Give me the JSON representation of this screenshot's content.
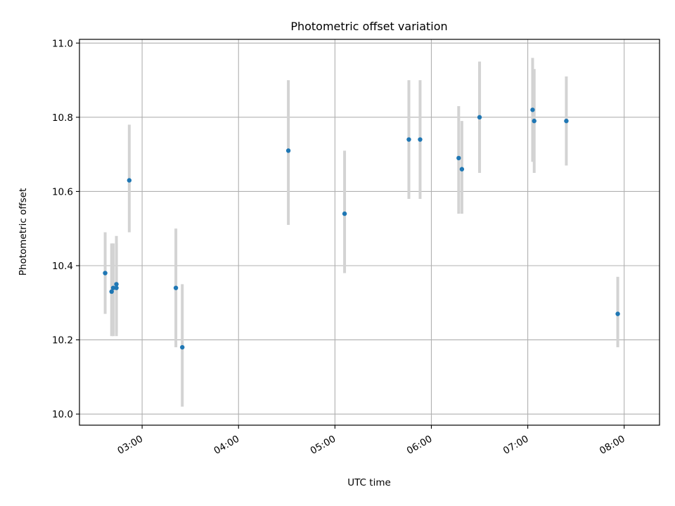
{
  "chart_data": {
    "type": "scatter",
    "title": "Photometric offset variation",
    "xlabel": "UTC time",
    "ylabel": "Photometric offset",
    "x_axis": {
      "kind": "time",
      "range": [
        "02:21",
        "08:22"
      ],
      "ticks": [
        "03:00",
        "04:00",
        "05:00",
        "06:00",
        "07:00",
        "08:00"
      ]
    },
    "y_axis": {
      "range": [
        9.97,
        11.01
      ],
      "ticks": [
        10.0,
        10.2,
        10.4,
        10.6,
        10.8,
        11.0
      ],
      "tick_labels": [
        "10.0",
        "10.2",
        "10.4",
        "10.6",
        "10.8",
        "11.0"
      ]
    },
    "grid": true,
    "marker_color": "#1f77b4",
    "errorbar_color": "#d3d3d3",
    "points": [
      {
        "x": "02:37",
        "y": 10.38,
        "ylow": 10.27,
        "yhigh": 10.49
      },
      {
        "x": "02:41",
        "y": 10.33,
        "ylow": 10.21,
        "yhigh": 10.46
      },
      {
        "x": "02:42",
        "y": 10.34,
        "ylow": 10.21,
        "yhigh": 10.46
      },
      {
        "x": "02:44",
        "y": 10.35,
        "ylow": 10.21,
        "yhigh": 10.48
      },
      {
        "x": "02:44",
        "y": 10.34,
        "ylow": 10.22,
        "yhigh": 10.46
      },
      {
        "x": "02:52",
        "y": 10.63,
        "ylow": 10.49,
        "yhigh": 10.78
      },
      {
        "x": "03:21",
        "y": 10.34,
        "ylow": 10.18,
        "yhigh": 10.5
      },
      {
        "x": "03:25",
        "y": 10.18,
        "ylow": 10.02,
        "yhigh": 10.35
      },
      {
        "x": "04:31",
        "y": 10.71,
        "ylow": 10.51,
        "yhigh": 10.9
      },
      {
        "x": "05:06",
        "y": 10.54,
        "ylow": 10.38,
        "yhigh": 10.71
      },
      {
        "x": "05:46",
        "y": 10.74,
        "ylow": 10.58,
        "yhigh": 10.9
      },
      {
        "x": "05:53",
        "y": 10.74,
        "ylow": 10.58,
        "yhigh": 10.9
      },
      {
        "x": "06:17",
        "y": 10.69,
        "ylow": 10.54,
        "yhigh": 10.83
      },
      {
        "x": "06:19",
        "y": 10.66,
        "ylow": 10.54,
        "yhigh": 10.79
      },
      {
        "x": "06:30",
        "y": 10.8,
        "ylow": 10.65,
        "yhigh": 10.95
      },
      {
        "x": "07:03",
        "y": 10.82,
        "ylow": 10.68,
        "yhigh": 10.96
      },
      {
        "x": "07:04",
        "y": 10.79,
        "ylow": 10.65,
        "yhigh": 10.93
      },
      {
        "x": "07:24",
        "y": 10.79,
        "ylow": 10.67,
        "yhigh": 10.91
      },
      {
        "x": "07:56",
        "y": 10.27,
        "ylow": 10.18,
        "yhigh": 10.37
      }
    ]
  }
}
